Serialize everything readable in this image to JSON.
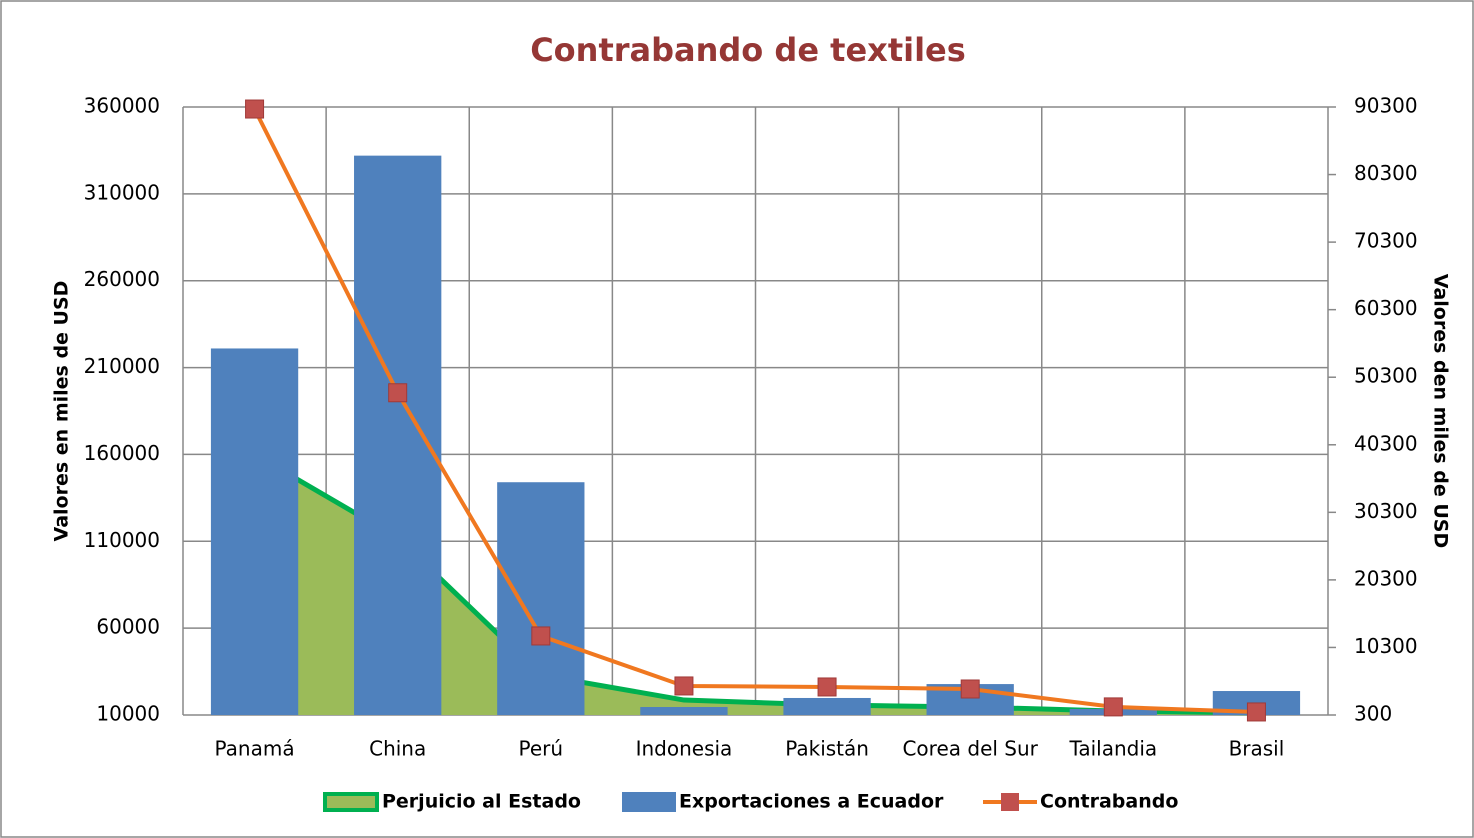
{
  "chart_data": {
    "type": "combo",
    "title": "Contrabando de textiles",
    "y_label": "Valores en miles de USD",
    "y2_label": "Valores den miles de USD",
    "categories": [
      "Panamá",
      "China",
      "Perú",
      "Indonesia",
      "Pakistán",
      "Corea del Sur",
      "Tailandia",
      "Brasil"
    ],
    "series": [
      {
        "name": "Perjuicio al Estado",
        "type": "area",
        "color": "#9bbb59",
        "stroke": "#00b050",
        "values": [
          160000,
          112000,
          33000,
          18600,
          15800,
          14600,
          12300,
          11200
        ]
      },
      {
        "name": "Exportaciones a Ecuador",
        "type": "bar",
        "color": "#4f81bd",
        "values": [
          221000,
          332000,
          144000,
          14600,
          19800,
          27800,
          13500,
          23800
        ]
      },
      {
        "name": "Contrabando",
        "type": "line",
        "axis": "y2",
        "color": "#f07820",
        "marker_color": "#c0504d",
        "values": [
          90000,
          48000,
          12000,
          4600,
          4450,
          4150,
          1500,
          750
        ]
      }
    ],
    "ylim": [
      10000,
      360000
    ],
    "yticks": [
      10000,
      60000,
      110000,
      160000,
      210000,
      260000,
      310000,
      360000
    ],
    "y2lim": [
      300,
      90300
    ],
    "y2ticks": [
      300,
      10300,
      20300,
      30300,
      40300,
      50300,
      60300,
      70300,
      80300,
      90300
    ],
    "grid": true,
    "legend": "bottom"
  }
}
